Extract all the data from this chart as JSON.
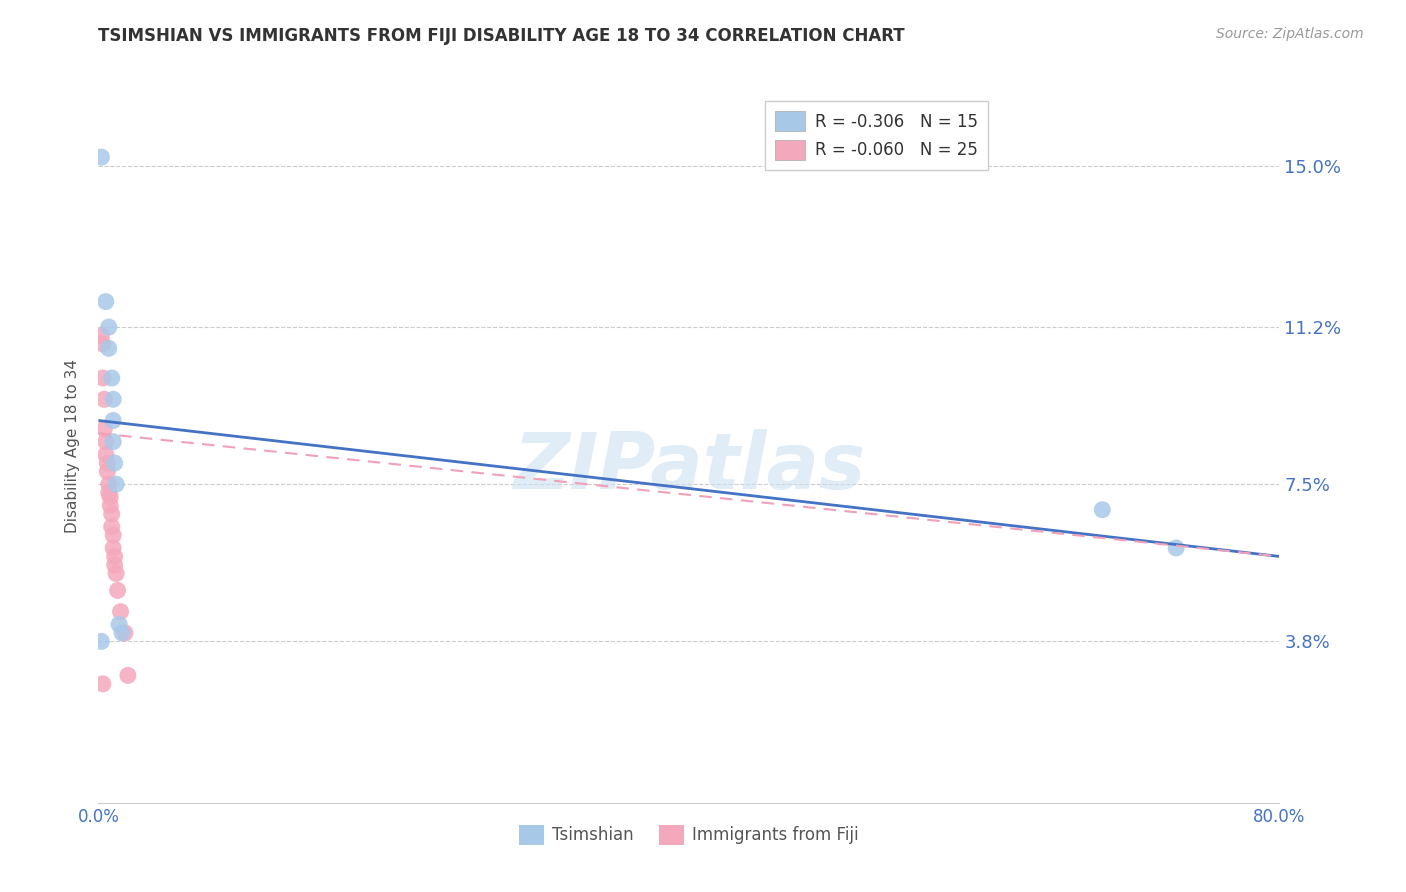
{
  "title": "TSIMSHIAN VS IMMIGRANTS FROM FIJI DISABILITY AGE 18 TO 34 CORRELATION CHART",
  "source": "Source: ZipAtlas.com",
  "ylabel": "Disability Age 18 to 34",
  "ytick_labels": [
    "3.8%",
    "7.5%",
    "11.2%",
    "15.0%"
  ],
  "ytick_values": [
    0.038,
    0.075,
    0.112,
    0.15
  ],
  "xmin": 0.0,
  "xmax": 0.8,
  "ymin": 0.0,
  "ymax": 0.168,
  "tsimshian_color": "#a8c8e8",
  "fiji_color": "#f4a8bc",
  "tsimshian_line_color": "#4472c4",
  "fiji_line_color": "#f0a0b8",
  "legend_r1": "R = -0.306",
  "legend_n1": "N = 15",
  "legend_r2": "R = -0.060",
  "legend_n2": "N = 25",
  "tsimshian_x": [
    0.002,
    0.005,
    0.007,
    0.007,
    0.009,
    0.01,
    0.01,
    0.01,
    0.011,
    0.012,
    0.014,
    0.016,
    0.68,
    0.73,
    0.002
  ],
  "tsimshian_y": [
    0.152,
    0.118,
    0.112,
    0.107,
    0.1,
    0.095,
    0.09,
    0.085,
    0.08,
    0.075,
    0.042,
    0.04,
    0.069,
    0.06,
    0.038
  ],
  "fiji_x": [
    0.002,
    0.003,
    0.003,
    0.004,
    0.004,
    0.005,
    0.005,
    0.006,
    0.006,
    0.007,
    0.007,
    0.008,
    0.008,
    0.009,
    0.009,
    0.01,
    0.01,
    0.011,
    0.011,
    0.012,
    0.013,
    0.015,
    0.018,
    0.02,
    0.003
  ],
  "fiji_y": [
    0.11,
    0.108,
    0.1,
    0.095,
    0.088,
    0.085,
    0.082,
    0.08,
    0.078,
    0.075,
    0.073,
    0.072,
    0.07,
    0.068,
    0.065,
    0.063,
    0.06,
    0.058,
    0.056,
    0.054,
    0.05,
    0.045,
    0.04,
    0.03,
    0.028
  ],
  "tsim_line_x0": 0.0,
  "tsim_line_x1": 0.8,
  "tsim_line_y0": 0.09,
  "tsim_line_y1": 0.058,
  "fiji_line_x0": 0.0,
  "fiji_line_x1": 0.8,
  "fiji_line_y0": 0.087,
  "fiji_line_y1": 0.058,
  "watermark": "ZIPatlas",
  "background_color": "#ffffff",
  "grid_color": "#cccccc",
  "xticks": [
    0.0,
    0.8
  ],
  "xtick_labels": [
    "0.0%",
    "80.0%"
  ]
}
